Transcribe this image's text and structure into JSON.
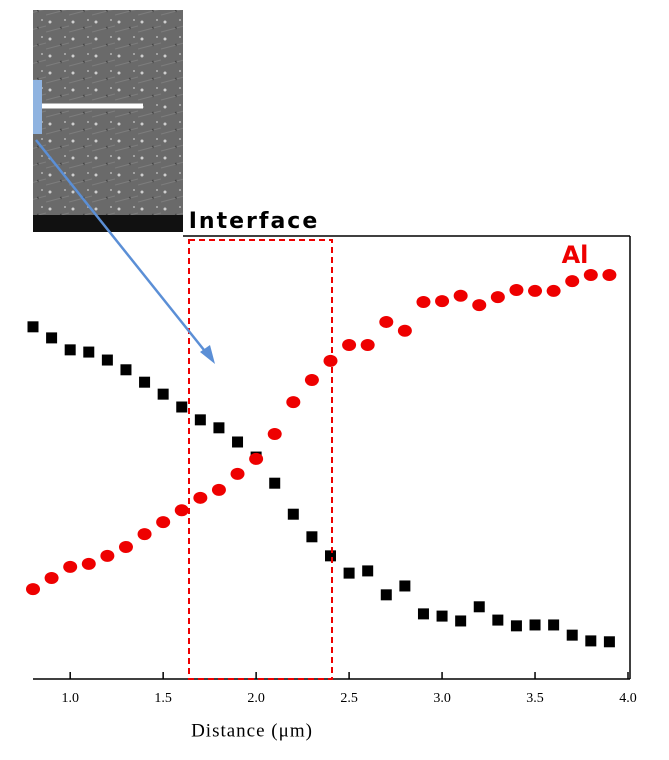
{
  "chart_data": {
    "type": "scatter",
    "x_label": "Distance (μm)",
    "annotations": [
      "Interface",
      "Al"
    ],
    "x": [
      0.8,
      0.9,
      1.0,
      1.1,
      1.2,
      1.3,
      1.4,
      1.5,
      1.6,
      1.7,
      1.8,
      1.9,
      2.0,
      2.1,
      2.2,
      2.3,
      2.4,
      2.5,
      2.6,
      2.7,
      2.8,
      2.9,
      3.0,
      3.1,
      3.2,
      3.3,
      3.4,
      3.5,
      3.6,
      3.7,
      3.8,
      3.9
    ],
    "series": [
      {
        "color": "#000000",
        "marker": "square",
        "values": [
          79.5,
          77.0,
          74.3,
          73.8,
          72.0,
          69.8,
          67.0,
          64.3,
          61.4,
          58.5,
          56.7,
          53.5,
          50.1,
          44.2,
          37.2,
          32.1,
          27.8,
          23.9,
          24.4,
          19.0,
          21.0,
          14.7,
          14.2,
          13.1,
          16.3,
          13.3,
          12.0,
          12.2,
          12.2,
          9.9,
          8.6,
          8.4
        ]
      },
      {
        "name": "Al",
        "color": "#ee0000",
        "marker": "ellipse",
        "values": [
          20.3,
          22.8,
          25.3,
          26.0,
          27.8,
          29.8,
          32.7,
          35.4,
          38.1,
          40.9,
          42.7,
          46.3,
          49.7,
          55.3,
          62.5,
          67.5,
          71.8,
          75.4,
          75.4,
          80.6,
          78.6,
          85.1,
          85.3,
          86.5,
          84.4,
          86.2,
          87.8,
          87.6,
          87.6,
          89.8,
          91.2,
          91.2
        ]
      }
    ],
    "xlim": [
      0.8,
      4.0
    ],
    "xticks": [
      {
        "value": 1,
        "label": "1.0"
      },
      1.5,
      {
        "value": 2,
        "label": "2.0"
      },
      2.5,
      {
        "value": 3,
        "label": "3.0"
      },
      3.5,
      {
        "value": 4,
        "label": "4.0"
      }
    ],
    "ylim": [
      0,
      100
    ]
  }
}
